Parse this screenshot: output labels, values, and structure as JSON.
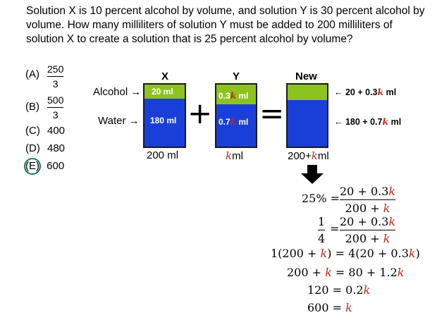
{
  "question": "Solution X is 10 percent alcohol by volume, and solution Y is 30 percent alcohol by volume.  How many milliliters of solution Y must be added to 200 milliliters of solution X to create a solution that is 25 percent alcohol by volume?",
  "options": [
    {
      "label": "(A)",
      "num": "250",
      "den": "3"
    },
    {
      "label": "(B)",
      "num": "500",
      "den": "3"
    },
    {
      "label": "(C)",
      "value": "400"
    },
    {
      "label": "(D)",
      "value": "480"
    },
    {
      "label": "(E)",
      "value": "600",
      "selected": true
    }
  ],
  "diagram": {
    "side_labels": {
      "alcohol": "Alcohol →",
      "water": "Water →"
    },
    "x": {
      "header": "X",
      "alcohol": "20 ml",
      "water": "180 ml",
      "total": "200 ml"
    },
    "y": {
      "header": "Y",
      "alcohol_pre": "0.3",
      "alcohol_post": " ml",
      "water_pre": "0.7",
      "water_post": " ml",
      "total_post": "ml"
    },
    "new": {
      "header": "New",
      "total_pre": "200+",
      "total_post": "ml",
      "ann_alcohol_pre": "← 20 + 0.3",
      "ann_alcohol_post": " ml",
      "ann_water_pre": "← 180 + 0.7",
      "ann_water_post": " ml"
    },
    "k": "k",
    "plus": "+",
    "equals": "="
  },
  "solution": {
    "l1_lhs": "25% =",
    "l1_num": "20 + 0.3",
    "l1_den": "200 + ",
    "l2_num": "1",
    "l2_den": "4",
    "l2_eq": "=",
    "l2_rnum": "20 + 0.3",
    "l2_rden": "200 + ",
    "l3_a": "1(200 + ",
    "l3_b": ") = 4(20 + 0.3",
    "l3_c": ")",
    "l4_a": "200 + ",
    "l4_b": " = 80 + 1.2",
    "l5_a": "120 = 0.2",
    "l6_a": "600 = "
  },
  "colors": {
    "alcohol": "#8dc21f",
    "water": "#1a3fd9",
    "k": "#c0271d",
    "selected_ring": "#1a7a52"
  }
}
